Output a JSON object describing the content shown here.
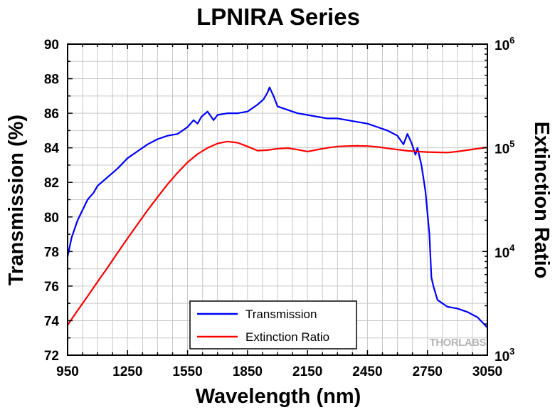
{
  "chart_data": {
    "type": "line",
    "title": "LPNIRA Series",
    "xlabel": "Wavelength (nm)",
    "ylabel_left": "Transmission (%)",
    "ylabel_right": "Extinction Ratio",
    "xlim": [
      950,
      3050
    ],
    "ylim_left": [
      72,
      90
    ],
    "ylim_right": [
      1000,
      1000000
    ],
    "right_scale": "log",
    "grid": true,
    "legend_position": "bottom-center",
    "x_ticks": [
      "950",
      "1250",
      "1550",
      "1850",
      "2150",
      "2450",
      "2750",
      "3050"
    ],
    "y_left_ticks": [
      "72",
      "74",
      "76",
      "78",
      "80",
      "82",
      "84",
      "86",
      "88",
      "90"
    ],
    "y_right_ticks": [
      {
        "base": "10",
        "exp": "3",
        "value": 1000
      },
      {
        "base": "10",
        "exp": "4",
        "value": 10000
      },
      {
        "base": "10",
        "exp": "5",
        "value": 100000
      },
      {
        "base": "10",
        "exp": "6",
        "value": 1000000
      }
    ],
    "watermark": "THORLABS",
    "series": [
      {
        "name": "Transmission",
        "color": "#0000ff",
        "axis": "left",
        "x": [
          950,
          970,
          1000,
          1050,
          1080,
          1100,
          1150,
          1200,
          1250,
          1300,
          1350,
          1400,
          1450,
          1500,
          1550,
          1580,
          1600,
          1620,
          1650,
          1680,
          1700,
          1750,
          1800,
          1850,
          1900,
          1930,
          1950,
          1960,
          1980,
          2000,
          2050,
          2100,
          2150,
          2200,
          2250,
          2300,
          2350,
          2400,
          2450,
          2500,
          2550,
          2600,
          2630,
          2650,
          2670,
          2690,
          2700,
          2720,
          2740,
          2760,
          2770,
          2780,
          2800,
          2850,
          2900,
          2950,
          3000,
          3050
        ],
        "y": [
          77.7,
          78.8,
          79.8,
          81.0,
          81.4,
          81.8,
          82.3,
          82.8,
          83.4,
          83.8,
          84.2,
          84.5,
          84.7,
          84.8,
          85.2,
          85.6,
          85.4,
          85.8,
          86.1,
          85.6,
          85.9,
          86.0,
          86.0,
          86.1,
          86.5,
          86.8,
          87.2,
          87.5,
          87.0,
          86.4,
          86.2,
          86.0,
          85.9,
          85.8,
          85.7,
          85.7,
          85.6,
          85.5,
          85.4,
          85.2,
          85.0,
          84.7,
          84.2,
          84.8,
          84.3,
          83.6,
          84.0,
          83.0,
          81.5,
          79.0,
          76.5,
          76.0,
          75.2,
          74.8,
          74.7,
          74.5,
          74.2,
          73.6
        ]
      },
      {
        "name": "Extinction Ratio",
        "color": "#ff0000",
        "axis": "right",
        "x": [
          950,
          1000,
          1050,
          1100,
          1150,
          1200,
          1250,
          1300,
          1350,
          1400,
          1450,
          1500,
          1550,
          1600,
          1650,
          1700,
          1750,
          1800,
          1850,
          1900,
          1950,
          2000,
          2050,
          2100,
          2150,
          2200,
          2250,
          2300,
          2350,
          2400,
          2450,
          2500,
          2550,
          2600,
          2650,
          2700,
          2750,
          2800,
          2850,
          2900,
          2950,
          3000,
          3050
        ],
        "y": [
          1950,
          2700,
          3700,
          5100,
          7000,
          9700,
          13400,
          18300,
          25000,
          33500,
          44500,
          57500,
          72500,
          87000,
          100000,
          110000,
          115000,
          112000,
          103000,
          94000,
          95000,
          98000,
          99500,
          96000,
          92000,
          96000,
          100000,
          103000,
          104000,
          104500,
          104000,
          102000,
          99000,
          96000,
          93500,
          92000,
          91000,
          90500,
          90000,
          92000,
          95000,
          98000,
          101000
        ]
      }
    ]
  }
}
